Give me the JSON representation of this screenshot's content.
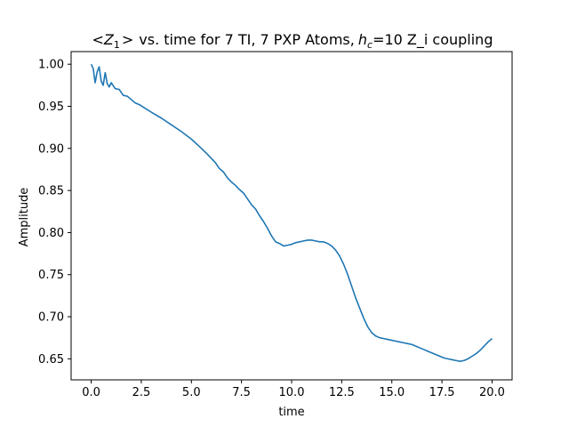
{
  "chart_data": {
    "type": "line",
    "title": "< Z_1 > vs. time for 7 TI, 7 PXP Atoms, h_c=10 Z_i coupling",
    "title_parts": {
      "prefix": "<",
      "z": "Z",
      "z_sub": "1",
      "suffix": ">",
      "rest": "vs. time for 7 TI, 7 PXP Atoms,",
      "h": "h",
      "h_sub": "c",
      "tail": "=10 Z_i coupling"
    },
    "xlabel": "time",
    "ylabel": "Amplitude",
    "xlim": [
      -1.0,
      21.0
    ],
    "ylim": [
      0.625,
      1.015
    ],
    "xticks": [
      0.0,
      2.5,
      5.0,
      7.5,
      10.0,
      12.5,
      15.0,
      17.5,
      20.0
    ],
    "xtick_labels": [
      "0.0",
      "2.5",
      "5.0",
      "7.5",
      "10.0",
      "12.5",
      "15.0",
      "17.5",
      "20.0"
    ],
    "yticks": [
      0.65,
      0.7,
      0.75,
      0.8,
      0.85,
      0.9,
      0.95,
      1.0
    ],
    "ytick_labels": [
      "0.65",
      "0.70",
      "0.75",
      "0.80",
      "0.85",
      "0.90",
      "0.95",
      "1.00"
    ],
    "grid": false,
    "color": "#1f77b4",
    "series": [
      {
        "x": [
          0.0,
          0.1,
          0.2,
          0.3,
          0.4,
          0.5,
          0.6,
          0.7,
          0.8,
          0.9,
          1.0,
          1.2,
          1.4,
          1.6,
          1.8,
          2.0,
          2.2,
          2.4,
          2.6,
          2.8,
          3.0,
          3.5,
          4.0,
          4.5,
          5.0,
          5.5,
          5.8,
          6.0,
          6.2,
          6.4,
          6.6,
          6.8,
          7.0,
          7.2,
          7.4,
          7.6,
          7.8,
          8.0,
          8.2,
          8.4,
          8.6,
          8.8,
          9.0,
          9.2,
          9.4,
          9.6,
          9.8,
          10.0,
          10.2,
          10.4,
          10.6,
          10.8,
          11.0,
          11.2,
          11.4,
          11.6,
          11.8,
          12.0,
          12.2,
          12.4,
          12.6,
          12.8,
          13.0,
          13.2,
          13.4,
          13.6,
          13.8,
          14.0,
          14.2,
          14.4,
          14.6,
          14.8,
          15.0,
          15.2,
          15.4,
          15.6,
          15.8,
          16.0,
          16.2,
          16.4,
          16.6,
          16.8,
          17.0,
          17.2,
          17.4,
          17.6,
          17.8,
          18.0,
          18.2,
          18.4,
          18.6,
          18.8,
          19.0,
          19.2,
          19.4,
          19.6,
          19.8,
          20.0
        ],
        "y": [
          1.0,
          0.995,
          0.978,
          0.991,
          0.997,
          0.98,
          0.975,
          0.99,
          0.977,
          0.973,
          0.978,
          0.971,
          0.97,
          0.963,
          0.962,
          0.958,
          0.954,
          0.952,
          0.949,
          0.946,
          0.943,
          0.936,
          0.928,
          0.92,
          0.911,
          0.9,
          0.893,
          0.888,
          0.883,
          0.876,
          0.872,
          0.865,
          0.86,
          0.856,
          0.851,
          0.847,
          0.84,
          0.833,
          0.828,
          0.82,
          0.813,
          0.805,
          0.796,
          0.789,
          0.787,
          0.784,
          0.785,
          0.786,
          0.788,
          0.789,
          0.79,
          0.791,
          0.791,
          0.79,
          0.789,
          0.789,
          0.787,
          0.784,
          0.779,
          0.772,
          0.762,
          0.75,
          0.736,
          0.722,
          0.71,
          0.698,
          0.688,
          0.681,
          0.677,
          0.675,
          0.674,
          0.673,
          0.672,
          0.671,
          0.67,
          0.669,
          0.668,
          0.667,
          0.665,
          0.663,
          0.661,
          0.659,
          0.657,
          0.655,
          0.653,
          0.651,
          0.65,
          0.649,
          0.648,
          0.647,
          0.648,
          0.65,
          0.653,
          0.656,
          0.66,
          0.665,
          0.67,
          0.674
        ]
      }
    ]
  }
}
